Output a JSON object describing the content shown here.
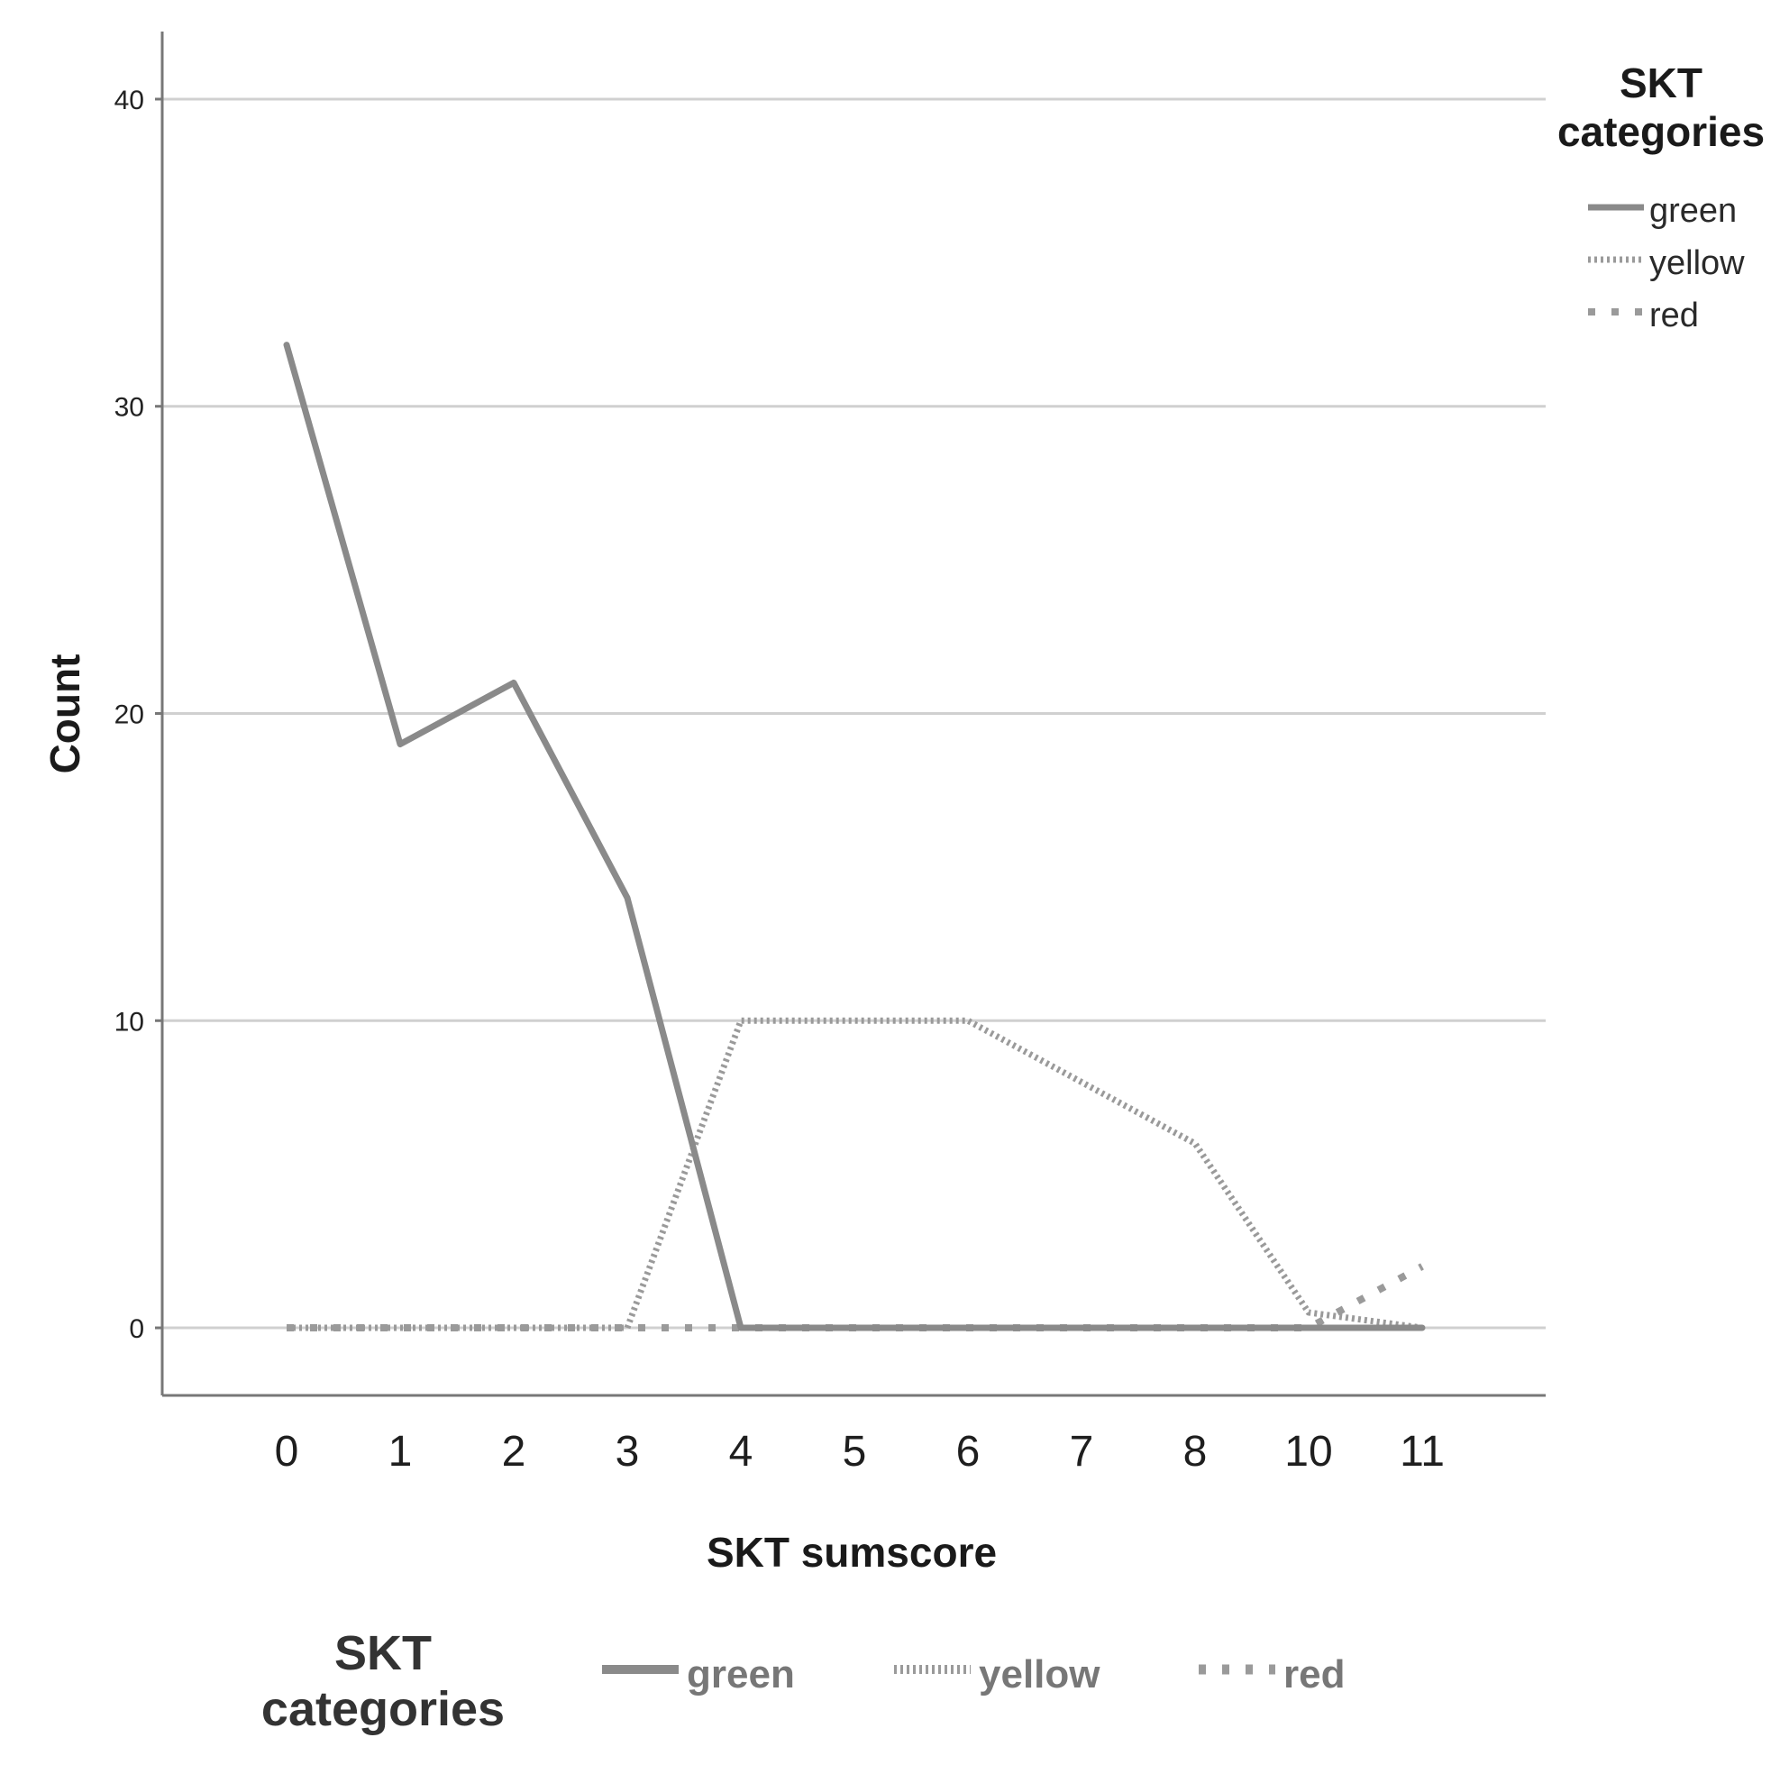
{
  "chart_data": {
    "type": "line",
    "xlabel": "SKT sumscore",
    "ylabel": "Count",
    "categories": [
      "0",
      "1",
      "2",
      "3",
      "4",
      "5",
      "6",
      "7",
      "8",
      "10",
      "11"
    ],
    "ylim": [
      -2.2,
      42.2
    ],
    "yticks": [
      0,
      10,
      20,
      30,
      40
    ],
    "grid": true,
    "legend_title": "SKT categories",
    "legend_placement": "right",
    "series": [
      {
        "name": "green",
        "style": "solid",
        "color": "#8a8a8a",
        "values": [
          32,
          19,
          21,
          14,
          0,
          0,
          0,
          0,
          0,
          0,
          0
        ]
      },
      {
        "name": "yellow",
        "style": "dotted",
        "color": "#9a9a9a",
        "values": [
          0,
          0,
          0,
          0,
          10,
          10,
          10,
          8,
          6,
          0.5,
          0
        ]
      },
      {
        "name": "red",
        "style": "dashed",
        "color": "#9a9a9a",
        "values": [
          0,
          0,
          0,
          0,
          0,
          0,
          0,
          0,
          0,
          0,
          2
        ]
      }
    ],
    "legend_bottom": {
      "title": "SKT categories",
      "labels": [
        "green",
        "yellow",
        "red"
      ]
    }
  }
}
